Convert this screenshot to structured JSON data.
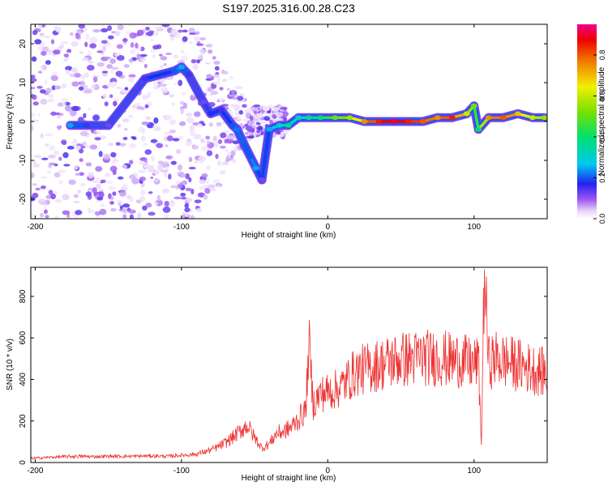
{
  "figure_title": "S197.2025.316.00.28.C23",
  "chart_data": [
    {
      "type": "heatmap",
      "title": "S197.2025.316.00.28.C23",
      "xlabel": "Height of straight line (km)",
      "ylabel": "Frequency (Hz)",
      "xlim": [
        -203,
        150
      ],
      "ylim": [
        -25,
        25
      ],
      "xticks": [
        -200,
        -100,
        0,
        100
      ],
      "yticks": [
        -20,
        -10,
        0,
        10,
        20
      ],
      "colorbar": {
        "label": "Normalized spectral amplitude",
        "range": [
          0.0,
          0.95
        ],
        "ticks": [
          0.0,
          0.2,
          0.4,
          0.6,
          0.8
        ]
      },
      "ridge": [
        {
          "x": -176,
          "y": -1,
          "amp": 0.25
        },
        {
          "x": -165,
          "y": -1,
          "amp": 0.15
        },
        {
          "x": -150,
          "y": -1,
          "amp": 0.12
        },
        {
          "x": -125,
          "y": 11,
          "amp": 0.15
        },
        {
          "x": -105,
          "y": 13,
          "amp": 0.2
        },
        {
          "x": -100,
          "y": 14,
          "amp": 0.25
        },
        {
          "x": -95,
          "y": 12,
          "amp": 0.15
        },
        {
          "x": -85,
          "y": 5,
          "amp": 0.12
        },
        {
          "x": -80,
          "y": 2,
          "amp": 0.18
        },
        {
          "x": -73,
          "y": 3,
          "amp": 0.15
        },
        {
          "x": -65,
          "y": -1,
          "amp": 0.2
        },
        {
          "x": -62,
          "y": -2,
          "amp": 0.22
        },
        {
          "x": -57,
          "y": -6,
          "amp": 0.2
        },
        {
          "x": -53,
          "y": -9,
          "amp": 0.2
        },
        {
          "x": -49,
          "y": -12,
          "amp": 0.25
        },
        {
          "x": -45,
          "y": -15,
          "amp": 0.12
        },
        {
          "x": -40,
          "y": -2,
          "amp": 0.25
        },
        {
          "x": -33,
          "y": -1,
          "amp": 0.3
        },
        {
          "x": -27,
          "y": -1,
          "amp": 0.35
        },
        {
          "x": -20,
          "y": 1,
          "amp": 0.3
        },
        {
          "x": -13,
          "y": 1,
          "amp": 0.35
        },
        {
          "x": -5,
          "y": 1,
          "amp": 0.4
        },
        {
          "x": 5,
          "y": 1,
          "amp": 0.5
        },
        {
          "x": 15,
          "y": 1,
          "amp": 0.55
        },
        {
          "x": 25,
          "y": 0,
          "amp": 0.75
        },
        {
          "x": 35,
          "y": 0,
          "amp": 0.85
        },
        {
          "x": 45,
          "y": 0,
          "amp": 0.9
        },
        {
          "x": 55,
          "y": 0,
          "amp": 0.85
        },
        {
          "x": 65,
          "y": 0,
          "amp": 0.8
        },
        {
          "x": 75,
          "y": 1,
          "amp": 0.75
        },
        {
          "x": 85,
          "y": 1,
          "amp": 0.85
        },
        {
          "x": 95,
          "y": 2,
          "amp": 0.6
        },
        {
          "x": 100,
          "y": 4,
          "amp": 0.5
        },
        {
          "x": 103,
          "y": -2,
          "amp": 0.4
        },
        {
          "x": 110,
          "y": 1,
          "amp": 0.75
        },
        {
          "x": 120,
          "y": 1,
          "amp": 0.8
        },
        {
          "x": 130,
          "y": 2,
          "amp": 0.7
        },
        {
          "x": 140,
          "y": 1,
          "amp": 0.6
        },
        {
          "x": 148,
          "y": 1,
          "amp": 0.55
        }
      ]
    },
    {
      "type": "line",
      "xlabel": "Height of straight line (km)",
      "ylabel": "SNR (10 * v/v)",
      "xlim": [
        -203,
        150
      ],
      "ylim": [
        0,
        940
      ],
      "xticks": [
        -200,
        -100,
        0,
        100
      ],
      "yticks": [
        0,
        200,
        400,
        600,
        800
      ],
      "series": [
        {
          "name": "SNR",
          "color": "#ee3333",
          "x": [
            -203,
            -190,
            -180,
            -170,
            -160,
            -150,
            -140,
            -130,
            -120,
            -110,
            -100,
            -90,
            -80,
            -75,
            -70,
            -65,
            -60,
            -55,
            -50,
            -45,
            -40,
            -35,
            -30,
            -25,
            -20,
            -15,
            -13,
            -10,
            -5,
            0,
            5,
            10,
            15,
            20,
            25,
            30,
            35,
            40,
            45,
            50,
            55,
            60,
            65,
            70,
            75,
            80,
            85,
            90,
            95,
            100,
            103,
            105,
            107,
            110,
            115,
            120,
            125,
            130,
            135,
            140,
            145,
            150
          ],
          "y": [
            20,
            25,
            28,
            30,
            28,
            30,
            30,
            30,
            32,
            30,
            35,
            40,
            60,
            75,
            95,
            120,
            150,
            180,
            120,
            70,
            90,
            140,
            150,
            170,
            210,
            250,
            580,
            280,
            330,
            340,
            350,
            370,
            410,
            440,
            450,
            460,
            470,
            480,
            490,
            495,
            500,
            500,
            510,
            500,
            505,
            500,
            490,
            495,
            480,
            470,
            490,
            85,
            930,
            480,
            500,
            490,
            480,
            470,
            460,
            450,
            440,
            430
          ]
        }
      ]
    }
  ]
}
